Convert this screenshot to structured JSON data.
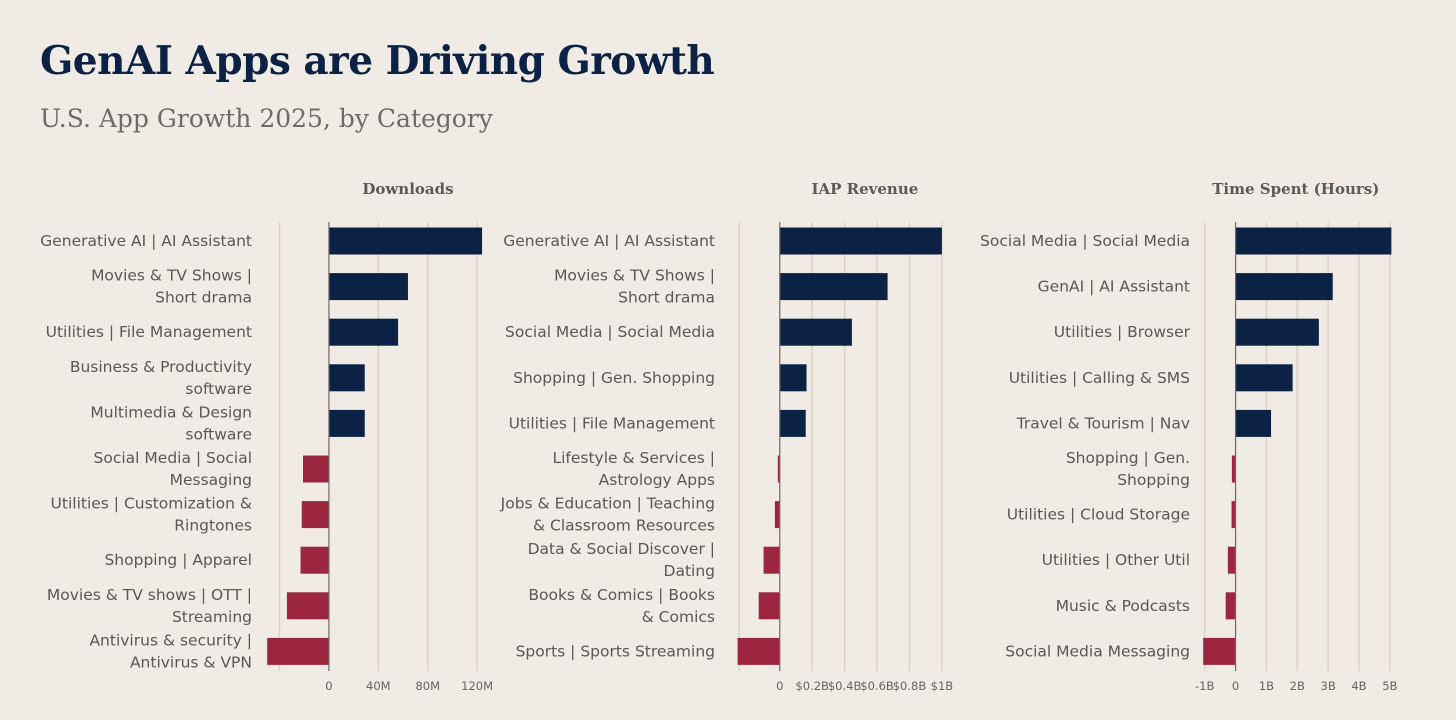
{
  "title": "GenAI Apps are Driving Growth",
  "subtitle": "U.S. App Growth 2025, by Category",
  "colors": {
    "positive": "#0c2244",
    "negative": "#9c2640",
    "grid": "#d9d2be",
    "axis": "#6e6a63",
    "background": "#f0ebe4"
  },
  "chart_data": [
    {
      "type": "bar",
      "orientation": "horizontal",
      "title": "Downloads",
      "categories": [
        [
          "Generative AI | AI Assistant"
        ],
        [
          "Movies & TV Shows |",
          "Short drama"
        ],
        [
          "Utilities | File Management"
        ],
        [
          "Business & Productivity",
          "software"
        ],
        [
          "Multimedia & Design",
          "software"
        ],
        [
          "Social Media | Social",
          "Messaging"
        ],
        [
          "Utilities | Customization  &",
          "Ringtones"
        ],
        [
          "Shopping | Apparel"
        ],
        [
          "Movies & TV shows | OTT |",
          "Streaming"
        ],
        [
          "Antivirus & security |",
          "Antivirus & VPN"
        ]
      ],
      "values": [
        124,
        64,
        56,
        29,
        29,
        -21,
        -22,
        -23,
        -34,
        -50
      ],
      "xlim": [
        -55,
        128
      ],
      "ticks": [
        0,
        40,
        80,
        120
      ],
      "tick_labels": [
        "0",
        "40M",
        "80M",
        "120M"
      ],
      "grid_values": [
        -40,
        0,
        40,
        80,
        120
      ],
      "grid": true
    },
    {
      "type": "bar",
      "orientation": "horizontal",
      "title": "IAP Revenue",
      "categories": [
        [
          "Generative AI | AI Assistant"
        ],
        [
          "Movies & TV Shows |",
          "Short drama"
        ],
        [
          "Social Media | Social Media"
        ],
        [
          "Shopping | Gen. Shopping"
        ],
        [
          "Utilities | File Management"
        ],
        [
          "Lifestyle & Services |",
          "Astrology Apps"
        ],
        [
          "Jobs & Education | Teaching",
          "& Classroom Resources"
        ],
        [
          "Data & Social Discover |",
          "Dating"
        ],
        [
          "Books & Comics | Books",
          "& Comics"
        ],
        [
          "Sports | Sports Streaming"
        ]
      ],
      "values": [
        1.0,
        0.665,
        0.445,
        0.165,
        0.16,
        -0.012,
        -0.03,
        -0.1,
        -0.13,
        -0.26
      ],
      "xlim": [
        -0.27,
        1.05
      ],
      "ticks": [
        0,
        0.2,
        0.4,
        0.6,
        0.8,
        1.0
      ],
      "tick_labels": [
        "0",
        "$0.2B",
        "$0.4B",
        "$0.6B",
        "$0.8B",
        "$1B"
      ],
      "grid_values": [
        -0.25,
        0,
        0.2,
        0.4,
        0.6,
        0.8,
        1.0
      ],
      "grid": true
    },
    {
      "type": "bar",
      "orientation": "horizontal",
      "title": "Time Spent (Hours)",
      "categories": [
        [
          "Social Media | Social Media"
        ],
        [
          "GenAI | AI Assistant"
        ],
        [
          "Utilities | Browser"
        ],
        [
          "Utilities | Calling & SMS"
        ],
        [
          "Travel & Tourism | Nav"
        ],
        [
          "Shopping | Gen.",
          "Shopping"
        ],
        [
          "Utilities | Cloud Storage"
        ],
        [
          "Utilities | Other Util"
        ],
        [
          "Music & Podcasts"
        ],
        [
          "Social Media Messaging"
        ]
      ],
      "values": [
        5.05,
        3.15,
        2.7,
        1.85,
        1.15,
        -0.12,
        -0.13,
        -0.25,
        -0.32,
        -1.05
      ],
      "xlim": [
        -1.25,
        5.2
      ],
      "ticks": [
        -1,
        0,
        1,
        2,
        3,
        4,
        5
      ],
      "tick_labels": [
        "-1B",
        "0",
        "1B",
        "2B",
        "3B",
        "4B",
        "5B"
      ],
      "grid_values": [
        -1,
        0,
        1,
        2,
        3,
        4,
        5
      ],
      "grid": true
    }
  ]
}
